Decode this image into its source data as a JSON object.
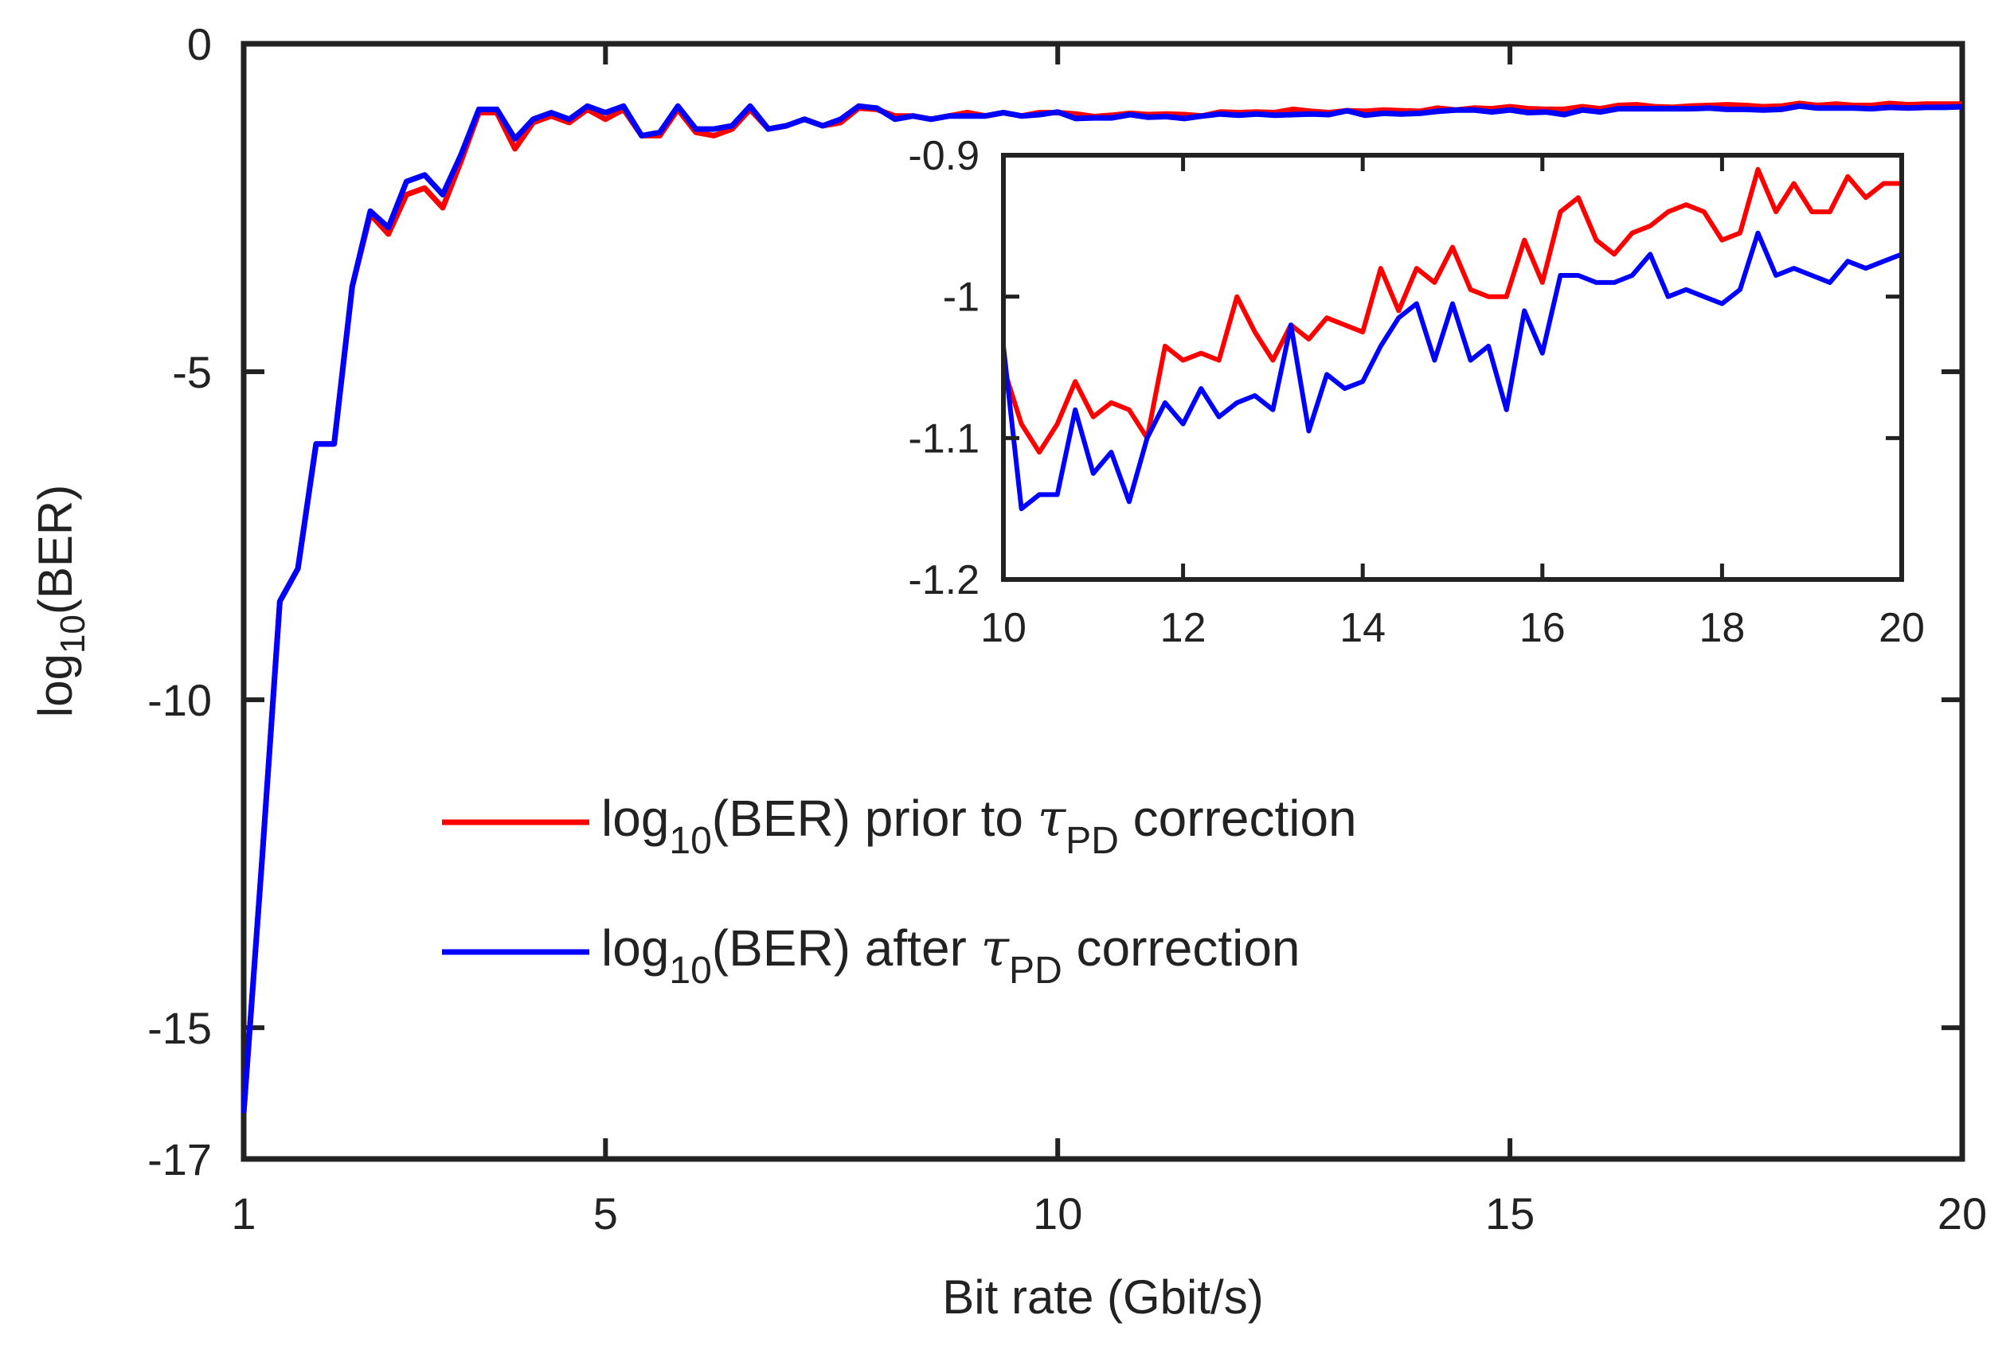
{
  "chart_data": [
    {
      "type": "line",
      "xlabel": "Bit rate (Gbit/s)",
      "ylabel_main": "log",
      "ylabel_sub": "10",
      "ylabel_rest": "(BER)",
      "xlim": [
        1,
        20
      ],
      "ylim": [
        -17,
        0
      ],
      "xticks": [
        1,
        5,
        10,
        15,
        20
      ],
      "yticks": [
        0,
        -5,
        -10,
        -15,
        -17
      ],
      "xtick_labels": [
        "1",
        "5",
        "10",
        "15",
        "20"
      ],
      "ytick_labels": [
        "0",
        "-5",
        "-10",
        "-15",
        "-17"
      ],
      "x": [
        1.0,
        1.2,
        1.4,
        1.6,
        1.8,
        2.0,
        2.2,
        2.4,
        2.6,
        2.8,
        3.0,
        3.2,
        3.4,
        3.6,
        3.8,
        4.0,
        4.2,
        4.4,
        4.6,
        4.8,
        5.0,
        5.2,
        5.4,
        5.6,
        5.8,
        6.0,
        6.2,
        6.4,
        6.6,
        6.8,
        7.0,
        7.2,
        7.4,
        7.6,
        7.8,
        8.0,
        8.2,
        8.4,
        8.6,
        8.8,
        9.0,
        9.2,
        9.4,
        9.6,
        9.8,
        10.0,
        10.2,
        10.4,
        10.6,
        10.8,
        11.0,
        11.2,
        11.4,
        11.6,
        11.8,
        12.0,
        12.2,
        12.4,
        12.6,
        12.8,
        13.0,
        13.2,
        13.4,
        13.6,
        13.8,
        14.0,
        14.2,
        14.4,
        14.6,
        14.8,
        15.0,
        15.2,
        15.4,
        15.6,
        15.8,
        16.0,
        16.2,
        16.4,
        16.6,
        16.8,
        17.0,
        17.2,
        17.4,
        17.6,
        17.8,
        18.0,
        18.2,
        18.4,
        18.6,
        18.8,
        19.0,
        19.2,
        19.4,
        19.6,
        19.8,
        20.0
      ],
      "series": [
        {
          "name": "prior",
          "color": "#ff0000",
          "values": [
            -16.3,
            -12.5,
            -8.5,
            -8.0,
            -6.1,
            -6.1,
            -3.7,
            -2.6,
            -2.9,
            -2.3,
            -2.2,
            -2.5,
            -1.8,
            -1.05,
            -1.05,
            -1.6,
            -1.2,
            -1.1,
            -1.2,
            -1.0,
            -1.15,
            -1.0,
            -1.4,
            -1.4,
            -1.0,
            -1.35,
            -1.4,
            -1.3,
            -1.0,
            -1.3,
            -1.25,
            -1.15,
            -1.25,
            -1.2,
            -0.98,
            -1.0,
            -1.1,
            -1.1,
            -1.15,
            -1.1,
            -1.05,
            -1.1,
            -1.05,
            -1.1,
            -1.05,
            -1.05,
            -1.07,
            -1.11,
            -1.09,
            -1.06,
            -1.08,
            -1.07,
            -1.08,
            -1.1,
            -1.04,
            -1.05,
            -1.04,
            -1.05,
            -1.0,
            -1.03,
            -1.05,
            -1.02,
            -1.03,
            -1.01,
            -1.02,
            -1.03,
            -0.98,
            -1.01,
            -0.98,
            -0.99,
            -0.96,
            -0.99,
            -1.0,
            -1.0,
            -0.96,
            -0.99,
            -0.94,
            -0.93,
            -0.96,
            -0.97,
            -0.95,
            -0.94,
            -0.93,
            -0.94,
            -0.96,
            -0.95,
            -0.91,
            -0.94,
            -0.92,
            -0.94,
            -0.94,
            -0.91,
            -0.93,
            -0.92,
            -0.92,
            -0.92
          ]
        },
        {
          "name": "after",
          "color": "#0000ff",
          "values": [
            -16.3,
            -12.5,
            -8.5,
            -8.0,
            -6.1,
            -6.1,
            -3.7,
            -2.55,
            -2.8,
            -2.1,
            -2.0,
            -2.3,
            -1.7,
            -1.0,
            -1.0,
            -1.45,
            -1.15,
            -1.05,
            -1.15,
            -0.95,
            -1.05,
            -0.95,
            -1.4,
            -1.35,
            -0.95,
            -1.3,
            -1.3,
            -1.25,
            -0.95,
            -1.3,
            -1.25,
            -1.15,
            -1.25,
            -1.15,
            -0.95,
            -0.98,
            -1.15,
            -1.1,
            -1.15,
            -1.1,
            -1.1,
            -1.1,
            -1.05,
            -1.1,
            -1.08,
            -1.04,
            -1.14,
            -1.13,
            -1.13,
            -1.08,
            -1.12,
            -1.11,
            -1.14,
            -1.1,
            -1.07,
            -1.09,
            -1.07,
            -1.09,
            -1.08,
            -1.07,
            -1.08,
            -1.02,
            -1.09,
            -1.06,
            -1.07,
            -1.06,
            -1.03,
            -1.01,
            -1.01,
            -1.04,
            -1.01,
            -1.05,
            -1.04,
            -1.08,
            -1.01,
            -1.04,
            -0.99,
            -0.99,
            -0.99,
            -0.99,
            -0.99,
            -0.98,
            -1.0,
            -1.0,
            -1.01,
            -1.0,
            -0.95,
            -0.98,
            -0.98,
            -0.98,
            -0.99,
            -0.97,
            -0.98,
            -0.97,
            -0.97,
            -0.96
          ]
        }
      ]
    },
    {
      "type": "line",
      "title": "inset",
      "xlim": [
        10,
        20
      ],
      "ylim": [
        -1.2,
        -0.9
      ],
      "xticks": [
        10,
        12,
        14,
        16,
        18,
        20
      ],
      "yticks": [
        -0.9,
        -1,
        -1.1,
        -1.2
      ],
      "xtick_labels": [
        "10",
        "12",
        "14",
        "16",
        "18",
        "20"
      ],
      "ytick_labels": [
        "-0.9",
        "-1",
        "-1.1",
        "-1.2"
      ],
      "x": [
        10.0,
        10.2,
        10.4,
        10.6,
        10.8,
        11.0,
        11.2,
        11.4,
        11.6,
        11.8,
        12.0,
        12.2,
        12.4,
        12.6,
        12.8,
        13.0,
        13.2,
        13.4,
        13.6,
        13.8,
        14.0,
        14.2,
        14.4,
        14.6,
        14.8,
        15.0,
        15.2,
        15.4,
        15.6,
        15.8,
        16.0,
        16.2,
        16.4,
        16.6,
        16.8,
        17.0,
        17.2,
        17.4,
        17.6,
        17.8,
        18.0,
        18.2,
        18.4,
        18.6,
        18.8,
        19.0,
        19.2,
        19.4,
        19.6,
        19.8,
        20.0
      ],
      "series": [
        {
          "name": "prior",
          "color": "#ff0000",
          "values": [
            -1.05,
            -1.09,
            -1.11,
            -1.09,
            -1.06,
            -1.085,
            -1.075,
            -1.08,
            -1.1,
            -1.035,
            -1.045,
            -1.04,
            -1.045,
            -1.0,
            -1.025,
            -1.045,
            -1.02,
            -1.03,
            -1.015,
            -1.02,
            -1.025,
            -0.98,
            -1.01,
            -0.98,
            -0.99,
            -0.965,
            -0.995,
            -1.0,
            -1.0,
            -0.96,
            -0.99,
            -0.94,
            -0.93,
            -0.96,
            -0.97,
            -0.955,
            -0.95,
            -0.94,
            -0.935,
            -0.94,
            -0.96,
            -0.955,
            -0.91,
            -0.94,
            -0.92,
            -0.94,
            -0.94,
            -0.915,
            -0.93,
            -0.92,
            -0.92
          ]
        },
        {
          "name": "after",
          "color": "#0000ff",
          "values": [
            -1.035,
            -1.15,
            -1.14,
            -1.14,
            -1.08,
            -1.125,
            -1.11,
            -1.145,
            -1.1,
            -1.075,
            -1.09,
            -1.065,
            -1.085,
            -1.075,
            -1.07,
            -1.08,
            -1.02,
            -1.095,
            -1.055,
            -1.065,
            -1.06,
            -1.035,
            -1.015,
            -1.005,
            -1.045,
            -1.005,
            -1.045,
            -1.035,
            -1.08,
            -1.01,
            -1.04,
            -0.985,
            -0.985,
            -0.99,
            -0.99,
            -0.985,
            -0.97,
            -1.0,
            -0.995,
            -1.0,
            -1.005,
            -0.995,
            -0.955,
            -0.985,
            -0.98,
            -0.985,
            -0.99,
            -0.975,
            -0.98,
            -0.975,
            -0.97
          ]
        }
      ]
    }
  ],
  "legend": {
    "prior": {
      "pre": "log",
      "sub": "10",
      "mid": "(BER) prior to ",
      "tau": "τ",
      "tausub": "PD",
      "post": " correction"
    },
    "after": {
      "pre": "log",
      "sub": "10",
      "mid": "(BER) after ",
      "tau": "τ",
      "tausub": "PD",
      "post": " correction"
    }
  }
}
